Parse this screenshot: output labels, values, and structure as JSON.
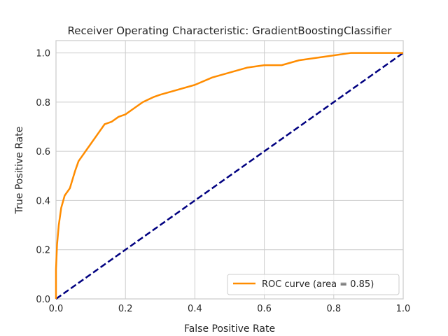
{
  "chart_data": {
    "type": "line",
    "title": "Receiver Operating Characteristic: GradientBoostingClassifier",
    "xlabel": "False Positive Rate",
    "ylabel": "True Positive Rate",
    "xlim": [
      0.0,
      1.0
    ],
    "ylim": [
      0.0,
      1.05
    ],
    "xticks": [
      "0.0",
      "0.2",
      "0.4",
      "0.6",
      "0.8",
      "1.0"
    ],
    "yticks": [
      "0.0",
      "0.2",
      "0.4",
      "0.6",
      "0.8",
      "1.0"
    ],
    "grid": true,
    "legend_position": "lower-right",
    "series": [
      {
        "name": "ROC curve (area = 0.85)",
        "color": "#ff8c00",
        "style": "solid",
        "x": [
          0.0,
          0.0,
          0.003,
          0.008,
          0.015,
          0.025,
          0.04,
          0.055,
          0.065,
          0.075,
          0.09,
          0.1,
          0.12,
          0.14,
          0.16,
          0.18,
          0.2,
          0.22,
          0.25,
          0.28,
          0.3,
          0.35,
          0.4,
          0.45,
          0.5,
          0.55,
          0.6,
          0.65,
          0.7,
          0.75,
          0.8,
          0.85,
          0.9,
          0.95,
          1.0
        ],
        "y": [
          0.0,
          0.12,
          0.22,
          0.3,
          0.37,
          0.42,
          0.45,
          0.52,
          0.56,
          0.58,
          0.61,
          0.63,
          0.67,
          0.71,
          0.72,
          0.74,
          0.75,
          0.77,
          0.8,
          0.82,
          0.83,
          0.85,
          0.87,
          0.9,
          0.92,
          0.94,
          0.95,
          0.95,
          0.97,
          0.98,
          0.99,
          1.0,
          1.0,
          1.0,
          1.0
        ]
      },
      {
        "color": "#000080",
        "style": "dashed",
        "x": [
          0.0,
          1.0
        ],
        "y": [
          0.0,
          1.0
        ]
      }
    ]
  }
}
